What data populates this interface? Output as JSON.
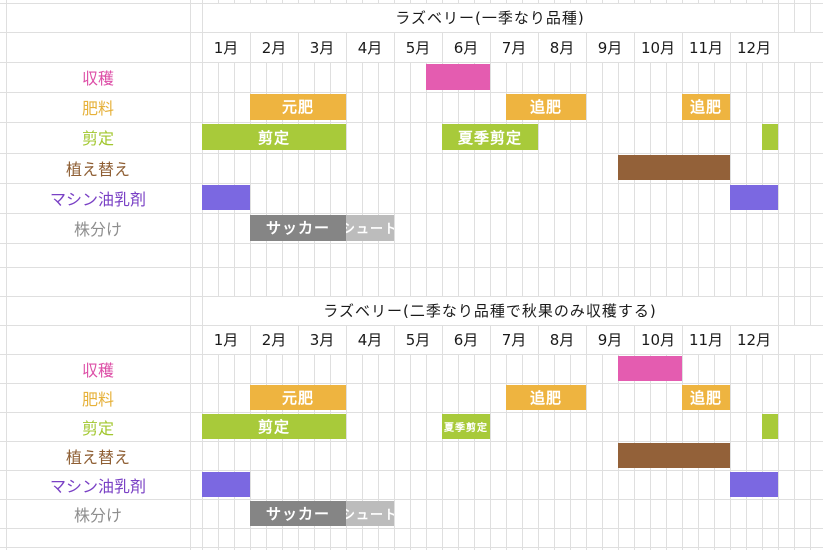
{
  "page": {
    "background": "#ffffff",
    "grid_color": "#dfdfdf",
    "text_color": "#1a1a1a"
  },
  "chart_data": {
    "type": "bar",
    "subtype": "gantt-calendar",
    "layout_hint": "two stacked 12-month task calendars on a spreadsheet grid; bar start/end are month indexes (0 = start of January, 12 = end of December)",
    "months": [
      "1月",
      "2月",
      "3月",
      "4月",
      "5月",
      "6月",
      "7月",
      "8月",
      "9月",
      "10月",
      "11月",
      "12月"
    ],
    "charts": [
      {
        "title": "ラズベリー(一季なり品種)",
        "rows": [
          {
            "id": "harvest",
            "label": "収穫",
            "label_color": "#dd4fa7",
            "bars": [
              {
                "start": 4.667,
                "end": 6,
                "color": "#e45cb0",
                "text": ""
              }
            ]
          },
          {
            "id": "fertilizer",
            "label": "肥料",
            "label_color": "#e6b13a",
            "bars": [
              {
                "start": 1,
                "end": 3,
                "color": "#eeb440",
                "text": "元肥"
              },
              {
                "start": 6.333,
                "end": 8,
                "color": "#eeb440",
                "text": "追肥"
              },
              {
                "start": 10,
                "end": 11,
                "color": "#eeb440",
                "text": "追肥"
              }
            ]
          },
          {
            "id": "pruning",
            "label": "剪定",
            "label_color": "#a2c72f",
            "bars": [
              {
                "start": 0,
                "end": 3,
                "color": "#a8ca3a",
                "text": "剪定"
              },
              {
                "start": 5,
                "end": 7,
                "color": "#a8ca3a",
                "text": "夏季剪定"
              },
              {
                "start": 11.667,
                "end": 12,
                "color": "#a8ca3a",
                "text": ""
              }
            ]
          },
          {
            "id": "repotting",
            "label": "植え替え",
            "label_color": "#8e5e33",
            "bars": [
              {
                "start": 8.667,
                "end": 11,
                "color": "#936139",
                "text": ""
              }
            ]
          },
          {
            "id": "machine-oil-spray",
            "label": "マシン油乳剤",
            "label_color": "#7a41c5",
            "bars": [
              {
                "start": 0,
                "end": 1,
                "color": "#7b68e1",
                "text": ""
              },
              {
                "start": 11,
                "end": 12,
                "color": "#7b68e1",
                "text": ""
              }
            ]
          },
          {
            "id": "division",
            "label": "株分け",
            "label_color": "#8e8e8e",
            "bars": [
              {
                "start": 1,
                "end": 3,
                "color": "#858585",
                "text": "サッカー"
              },
              {
                "start": 3,
                "end": 4,
                "color": "#bcbcbc",
                "text": "シュート",
                "fs": 13
              }
            ]
          }
        ]
      },
      {
        "title": "ラズベリー(二季なり品種で秋果のみ収穫する)",
        "rows": [
          {
            "id": "harvest",
            "label": "収穫",
            "label_color": "#dd4fa7",
            "bars": [
              {
                "start": 8.667,
                "end": 10,
                "color": "#e45cb0",
                "text": ""
              }
            ]
          },
          {
            "id": "fertilizer",
            "label": "肥料",
            "label_color": "#e6b13a",
            "bars": [
              {
                "start": 1,
                "end": 3,
                "color": "#eeb440",
                "text": "元肥"
              },
              {
                "start": 6.333,
                "end": 8,
                "color": "#eeb440",
                "text": "追肥"
              },
              {
                "start": 10,
                "end": 11,
                "color": "#eeb440",
                "text": "追肥"
              }
            ]
          },
          {
            "id": "pruning",
            "label": "剪定",
            "label_color": "#a2c72f",
            "bars": [
              {
                "start": 0,
                "end": 3,
                "color": "#a8ca3a",
                "text": "剪定"
              },
              {
                "start": 5,
                "end": 6,
                "color": "#a8ca3a",
                "text": "夏季剪定",
                "fs": 10
              },
              {
                "start": 11.667,
                "end": 12,
                "color": "#a8ca3a",
                "text": ""
              }
            ]
          },
          {
            "id": "repotting",
            "label": "植え替え",
            "label_color": "#8e5e33",
            "bars": [
              {
                "start": 8.667,
                "end": 11,
                "color": "#936139",
                "text": ""
              }
            ]
          },
          {
            "id": "machine-oil-spray",
            "label": "マシン油乳剤",
            "label_color": "#7a41c5",
            "bars": [
              {
                "start": 0,
                "end": 1,
                "color": "#7b68e1",
                "text": ""
              },
              {
                "start": 11,
                "end": 12,
                "color": "#7b68e1",
                "text": ""
              }
            ]
          },
          {
            "id": "division",
            "label": "株分け",
            "label_color": "#8e8e8e",
            "bars": [
              {
                "start": 1,
                "end": 3,
                "color": "#858585",
                "text": "サッカー"
              },
              {
                "start": 3,
                "end": 4,
                "color": "#bcbcbc",
                "text": "シュート",
                "fs": 13
              }
            ]
          }
        ]
      }
    ]
  }
}
